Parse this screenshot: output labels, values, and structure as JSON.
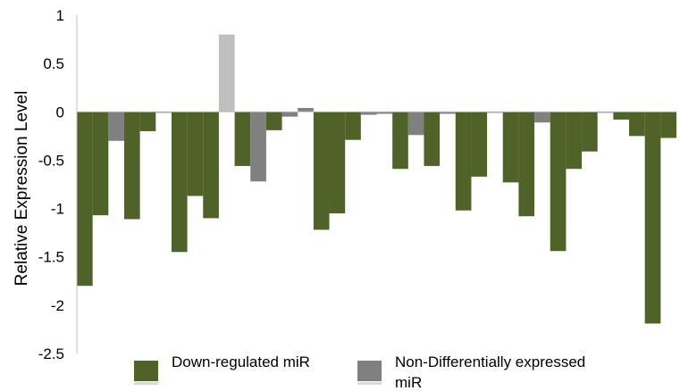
{
  "chart_data": {
    "type": "bar",
    "title": "",
    "xlabel": "",
    "ylabel": "Relative Expression Level",
    "ylim": [
      -2.5,
      1
    ],
    "yticks": [
      "1",
      "0.5",
      "0",
      "-0.5",
      "-1",
      "-1.5",
      "-2",
      "-2.5"
    ],
    "grid": false,
    "legend_position": "bottom",
    "colors": {
      "down": "#4f6228",
      "nondiff": "#808080",
      "up": "#bfbfbf",
      "axis": "#c0c0c0"
    },
    "legend": [
      {
        "key": "down",
        "label_lines": [
          "Down-regulated miR"
        ]
      },
      {
        "key": "nondiff",
        "label_lines": [
          "Non-Differentially expressed",
          "miR"
        ]
      }
    ],
    "values": [
      -1.8,
      -1.07,
      -0.3,
      -1.11,
      -0.2,
      -0.01,
      -1.45,
      -0.87,
      -1.1,
      0.8,
      -0.56,
      -0.72,
      -0.19,
      -0.05,
      0.04,
      -1.22,
      -1.05,
      -0.29,
      -0.03,
      -0.02,
      -0.59,
      -0.24,
      -0.56,
      -0.02,
      -1.02,
      -0.67,
      -0.01,
      -0.73,
      -1.08,
      -0.11,
      -1.44,
      -0.59,
      -0.41,
      -0.01,
      -0.08,
      -0.25,
      -2.19,
      -0.27
    ],
    "groups": [
      "down",
      "down",
      "nondiff",
      "down",
      "down",
      "nondiff",
      "down",
      "down",
      "down",
      "up",
      "down",
      "nondiff",
      "down",
      "nondiff",
      "nondiff",
      "down",
      "down",
      "down",
      "nondiff",
      "nondiff",
      "down",
      "nondiff",
      "down",
      "nondiff",
      "down",
      "down",
      "nondiff",
      "down",
      "down",
      "nondiff",
      "down",
      "down",
      "down",
      "nondiff",
      "down",
      "down",
      "down",
      "down"
    ]
  }
}
